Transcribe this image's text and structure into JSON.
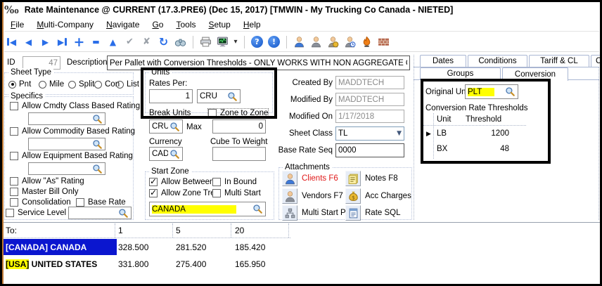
{
  "window": {
    "logo_icon": "permille-logo",
    "title": "Rate Maintenance @ CURRENT (17.3.PRE6) (Dec 15, 2017) [TMWIN - My Trucking Co Canada - NIETED]"
  },
  "menu": {
    "items": [
      "File",
      "Multi-Company",
      "Navigate",
      "Go",
      "Tools",
      "Setup",
      "Help"
    ]
  },
  "toolbar": {
    "icons": [
      "first-record",
      "previous-record",
      "next-record",
      "last-record",
      "add-record",
      "delete-record",
      "collapse",
      "accept",
      "cancel",
      "refresh",
      "binoculars-search",
      "print",
      "rate-monitor",
      "monitor-dropdown",
      "help",
      "about",
      "clients",
      "vendors",
      "acc-charges",
      "schedule-user",
      "flame-user",
      "firewall"
    ],
    "help_glyph": "?",
    "about_glyph": "!"
  },
  "record_header": {
    "id_label": "ID",
    "id_value": "47",
    "description_label": "Description",
    "description_value": "Per Pallet with Conversion Thresholds - ONLY WORKS WITH NON AGGREGATE ON"
  },
  "sheet_type": {
    "label": "Sheet Type",
    "options": [
      {
        "label": "Pnt",
        "selected": true
      },
      {
        "label": "Mile",
        "selected": false
      },
      {
        "label": "Split",
        "selected": false
      },
      {
        "label": "Con",
        "selected": false
      },
      {
        "label": "List",
        "selected": false
      }
    ]
  },
  "specifics": {
    "label": "Specifics",
    "cmdty_class": {
      "label": "Allow Cmdty Class Based Rating",
      "checked": false,
      "value": ""
    },
    "commodity": {
      "label": "Allow Commodity Based Rating",
      "checked": false,
      "value": ""
    },
    "equipment": {
      "label": "Allow Equipment Based Rating",
      "checked": false,
      "value": ""
    },
    "as_rating": {
      "label": "Allow \"As\" Rating",
      "checked": false
    },
    "master_bill": {
      "label": "Master Bill Only",
      "checked": false
    },
    "consolidation": {
      "label": "Consolidation",
      "checked": false
    },
    "base_rate": {
      "label": "Base Rate",
      "checked": false
    },
    "service_level": {
      "label": "Service Level",
      "checked": false,
      "value": ""
    }
  },
  "units": {
    "label": "Units",
    "rates_per_label": "Rates Per:",
    "rates_per_value": "1",
    "rates_per_unit": "CRU"
  },
  "break_units": {
    "label": "Break Units",
    "unit": "CRU",
    "max_label": "Max",
    "max_value": "0",
    "zone_to_zone_label": "Zone to Zone",
    "zone_to_zone_checked": false
  },
  "currency": {
    "label": "Currency",
    "value": "CAD",
    "cube_label": "Cube To Weight",
    "cube_value": ""
  },
  "start_zone": {
    "label": "Start Zone",
    "allow_between": {
      "label": "Allow Between",
      "checked": true
    },
    "in_bound": {
      "label": "In Bound",
      "checked": false
    },
    "allow_zone_tree": {
      "label": "Allow Zone Tree",
      "checked": true
    },
    "multi_start": {
      "label": "Multi Start",
      "checked": false
    },
    "zone_value": "CANADA"
  },
  "audit": {
    "created_by_label": "Created By",
    "created_by": "MADDTECH",
    "modified_by_label": "Modified By",
    "modified_by": "MADDTECH",
    "modified_on_label": "Modified On",
    "modified_on": "1/17/2018",
    "sheet_class_label": "Sheet Class",
    "sheet_class": "TL",
    "base_rate_seq_label": "Base Rate Seq",
    "base_rate_seq": "0000"
  },
  "attachments": {
    "label": "Attachments",
    "buttons": [
      {
        "label": "Clients F6",
        "icon": "client-person",
        "emphasis": "red"
      },
      {
        "label": "Vendors F7",
        "icon": "vendor-person"
      },
      {
        "label": "Multi Start Pts",
        "icon": "multi-start-network"
      },
      {
        "label": "Notes F8",
        "icon": "notes"
      },
      {
        "label": "Acc Charges",
        "icon": "money-bag"
      },
      {
        "label": "Rate SQL",
        "icon": "sql-document"
      }
    ]
  },
  "tab_panel": {
    "row1": [
      "Dates",
      "Conditions",
      "Tariff & CL",
      "Co"
    ],
    "row2": [
      "Groups",
      "Conversion"
    ],
    "active_tab": "Conversion"
  },
  "conversion": {
    "original_unit_label": "Original Unit",
    "original_unit_value": "PLT",
    "thresholds_title": "Conversion Rate Thresholds",
    "columns": [
      "Unit",
      "Threshold"
    ],
    "rows": [
      {
        "unit": "LB",
        "threshold": "1200",
        "current": true
      },
      {
        "unit": "BX",
        "threshold": "48",
        "current": false
      }
    ]
  },
  "rate_grid": {
    "header": [
      "To:",
      "1",
      "5",
      "20"
    ],
    "rows": [
      {
        "to": "[CANADA] CANADA",
        "values": [
          "328.500",
          "281.520",
          "185.420"
        ],
        "selected": true
      },
      {
        "to_prefix": "[USA]",
        "to_rest": " UNITED STATES",
        "values": [
          "331.800",
          "275.400",
          "165.950"
        ],
        "selected": false
      }
    ]
  },
  "colors": {
    "highlight_yellow": "#ffff00",
    "selection_blue": "#0b16cf",
    "alert_red": "#e01818",
    "annotation_black": "#000000",
    "toolbar_blue": "#2a6ee8"
  }
}
